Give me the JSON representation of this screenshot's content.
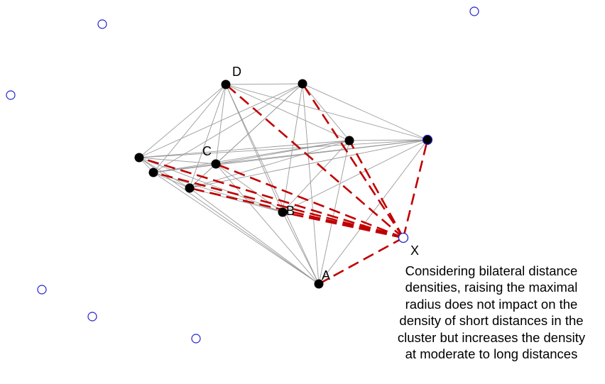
{
  "colors": {
    "cluster_node_fill": "#000000",
    "outlier_node_stroke": "#2222cc",
    "edge_gray": "#9a9a9a",
    "edge_dashed_red": "#c00000"
  },
  "labels": {
    "A": "A",
    "B": "B",
    "C": "C",
    "D": "D",
    "X": "X"
  },
  "caption": {
    "lines": [
      "Considering bilateral distance",
      "densities, raising the maximal",
      "radius does not impact on the",
      "density of short distances in the",
      "cluster but increases the density",
      "at moderate to long distances"
    ]
  },
  "graph": {
    "cluster_nodes": [
      "D",
      "n2",
      "n3",
      "n4",
      "n5",
      "n6",
      "n7",
      "C",
      "B",
      "A"
    ],
    "focus_node": "X",
    "outlier_nodes": [
      "o1",
      "o2",
      "o3",
      "o4",
      "o5",
      "o6"
    ],
    "dashed_edges_from_X": [
      "D",
      "n2",
      "n3",
      "n4",
      "n5",
      "n6",
      "n7",
      "C",
      "B",
      "A"
    ]
  }
}
